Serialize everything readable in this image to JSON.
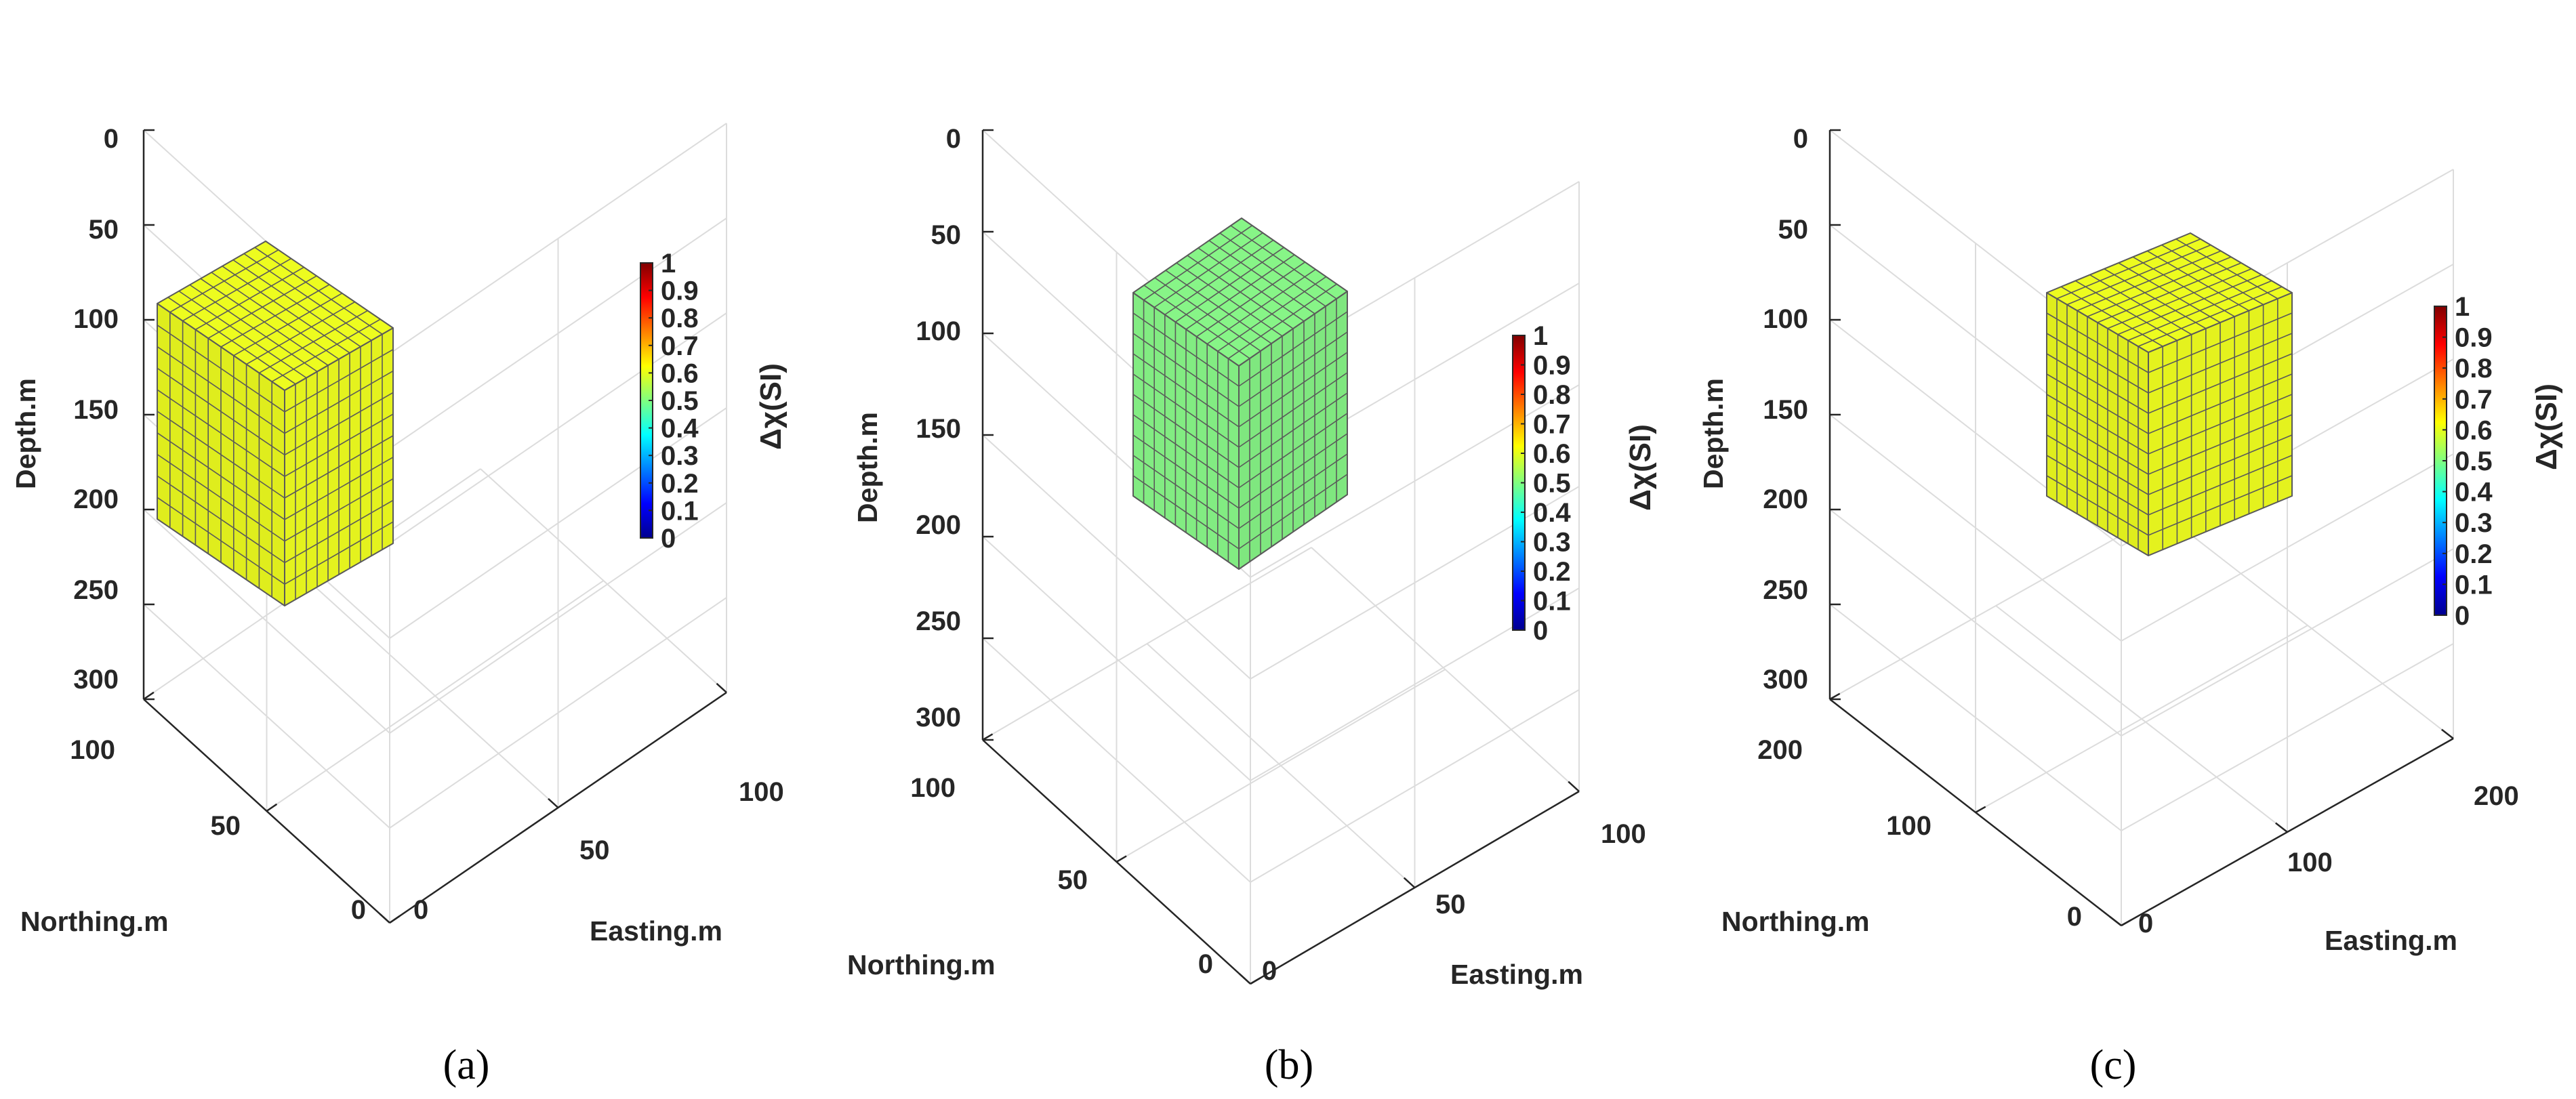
{
  "chart_data": [
    {
      "type": "3d-voxel",
      "panel_label": "(a)",
      "value": 0.6,
      "cell_color": "#e4f21e",
      "cells": [
        10,
        10,
        10
      ],
      "block": {
        "easting": [
          30,
          70
        ],
        "northing": [
          30,
          70
        ],
        "depth": [
          110,
          220
        ]
      },
      "depth_ticks": [
        "0",
        "50",
        "100",
        "150",
        "200",
        "250",
        "300"
      ],
      "northing_ticks": [
        "0",
        "50",
        "100"
      ],
      "easting_ticks": [
        "0",
        "50",
        "100"
      ],
      "zlabel": "Depth.m",
      "ylabel": "Northing.m",
      "xlabel": "Easting.m",
      "colorbar": {
        "label": "Δχ(SI)",
        "ticks": [
          "0",
          "0.1",
          "0.2",
          "0.3",
          "0.4",
          "0.5",
          "0.6",
          "0.7",
          "0.8",
          "0.9",
          "1"
        ],
        "range": [
          0,
          1
        ]
      }
    },
    {
      "type": "3d-voxel",
      "panel_label": "(b)",
      "value": 0.45,
      "cell_color": "#82ec82",
      "cells": [
        10,
        10,
        10
      ],
      "block": {
        "easting": [
          30,
          70
        ],
        "northing": [
          30,
          70
        ],
        "depth": [
          80,
          200
        ]
      },
      "depth_ticks": [
        "0",
        "50",
        "100",
        "150",
        "200",
        "250",
        "300"
      ],
      "northing_ticks": [
        "0",
        "50",
        "100"
      ],
      "easting_ticks": [
        "0",
        "50",
        "100"
      ],
      "zlabel": "Depth.m",
      "ylabel": "Northing.m",
      "xlabel": "Easting.m",
      "colorbar": {
        "label": "Δχ(SI)",
        "ticks": [
          "0",
          "0.1",
          "0.2",
          "0.3",
          "0.4",
          "0.5",
          "0.6",
          "0.7",
          "0.8",
          "0.9",
          "1"
        ],
        "range": [
          0,
          1
        ]
      }
    },
    {
      "type": "3d-voxel",
      "panel_label": "(c)",
      "value": 0.6,
      "cell_color": "#e4f21e",
      "cells": [
        10,
        10,
        10
      ],
      "block": {
        "easting": [
          60,
          140
        ],
        "northing": [
          60,
          140
        ],
        "depth": [
          90,
          200
        ]
      },
      "depth_ticks": [
        "0",
        "50",
        "100",
        "150",
        "200",
        "250",
        "300"
      ],
      "northing_ticks": [
        "0",
        "100",
        "200"
      ],
      "easting_ticks": [
        "0",
        "100",
        "200"
      ],
      "zlabel": "Depth.m",
      "ylabel": "Northing.m",
      "xlabel": "Easting.m",
      "colorbar": {
        "label": "Δχ(SI)",
        "ticks": [
          "0",
          "0.1",
          "0.2",
          "0.3",
          "0.4",
          "0.5",
          "0.6",
          "0.7",
          "0.8",
          "0.9",
          "1"
        ],
        "range": [
          0,
          1
        ]
      }
    }
  ]
}
